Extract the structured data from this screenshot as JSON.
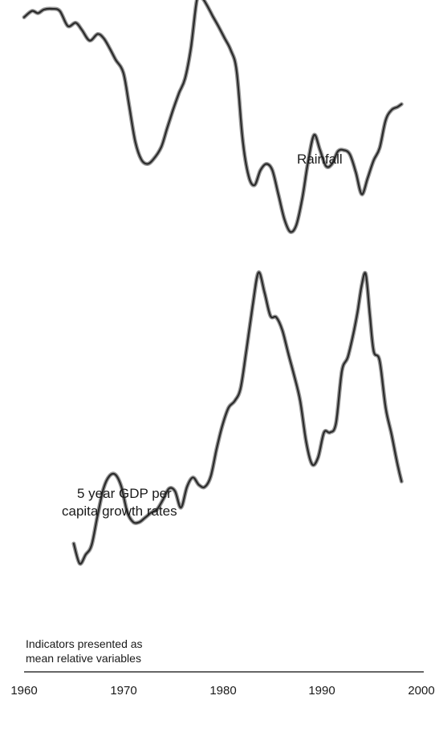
{
  "chart_data": {
    "type": "line",
    "title": "",
    "xlabel": "",
    "ylabel": "",
    "xlim": [
      1960,
      2000
    ],
    "x_ticks": [
      "1960",
      "1970",
      "1980",
      "1990",
      "2000"
    ],
    "grid": false,
    "legend": "none",
    "note_lines": [
      "Indicators presented as",
      "mean relative variables"
    ],
    "series": [
      {
        "name": "Rainfall",
        "label_lines": [
          "Rainfall"
        ],
        "x": [
          1960,
          1960.8,
          1961.4,
          1962,
          1962.8,
          1963.6,
          1964.4,
          1965.2,
          1965.8,
          1966.6,
          1967.4,
          1968,
          1968.6,
          1969.2,
          1970,
          1970.6,
          1971.2,
          1971.8,
          1972.4,
          1973,
          1973.8,
          1974.4,
          1975,
          1975.6,
          1976.2,
          1976.8,
          1977.4,
          1977.9,
          1978.4,
          1979,
          1979.6,
          1980.2,
          1980.8,
          1981.4,
          1982,
          1982.6,
          1983.2,
          1983.8,
          1984.4,
          1985,
          1985.6,
          1986.2,
          1986.8,
          1987.4,
          1988,
          1988.6,
          1989.2,
          1989.8,
          1990.4,
          1991,
          1991.6,
          1992.2,
          1992.8,
          1993.4,
          1994,
          1994.6,
          1995.2,
          1995.8,
          1996.4,
          1997,
          1997.6,
          1998
        ],
        "y": [
          0.3,
          0.82,
          0.64,
          0.94,
          1.0,
          0.82,
          -0.43,
          -0.16,
          -0.73,
          -1.64,
          -1.1,
          -1.43,
          -2.25,
          -3.21,
          -4.34,
          -7.16,
          -10.06,
          -11.53,
          -11.9,
          -11.53,
          -10.51,
          -8.94,
          -7.4,
          -6.01,
          -4.81,
          -2.25,
          1.73,
          1.91,
          1.31,
          0.38,
          -0.5,
          -1.46,
          -2.42,
          -4.16,
          -9.84,
          -12.88,
          -13.66,
          -12.43,
          -11.9,
          -12.43,
          -14.42,
          -16.46,
          -17.54,
          -17.0,
          -14.82,
          -11.71,
          -9.49,
          -10.75,
          -12.08,
          -11.9,
          -10.85,
          -10.75,
          -11.1,
          -12.58,
          -14.42,
          -13.06,
          -11.6,
          -10.58,
          -8.28,
          -7.41,
          -7.16,
          -6.93
        ]
      },
      {
        "name": "5 year GDP per capita growth rates",
        "label_lines": [
          "5 year GDP per",
          "capita growth rates"
        ],
        "x": [
          1965,
          1965.6,
          1966.2,
          1966.8,
          1967.4,
          1968,
          1968.6,
          1969.2,
          1969.8,
          1970.4,
          1971,
          1971.6,
          1972.2,
          1972.8,
          1973.4,
          1974,
          1974.6,
          1975.2,
          1975.8,
          1976.4,
          1977,
          1977.6,
          1978.2,
          1978.8,
          1979.4,
          1980,
          1980.6,
          1981.2,
          1981.8,
          1982.4,
          1983,
          1983.6,
          1984.2,
          1984.8,
          1985.4,
          1986,
          1986.6,
          1987.2,
          1987.8,
          1988.4,
          1989,
          1989.6,
          1990.2,
          1990.8,
          1991.4,
          1992,
          1992.6,
          1993.2,
          1993.6,
          1994,
          1994.4,
          1994.8,
          1995.2,
          1995.8,
          1996.4,
          1997,
          1997.6,
          1998
        ],
        "y": [
          9.87,
          8.21,
          8.95,
          9.73,
          12.21,
          14.45,
          15.49,
          15.59,
          14.58,
          12.46,
          11.65,
          11.65,
          12.03,
          12.44,
          12.72,
          13.55,
          14.45,
          14.22,
          12.86,
          14.58,
          15.36,
          14.75,
          14.58,
          15.46,
          17.81,
          19.78,
          21.18,
          21.72,
          22.79,
          26.03,
          29.55,
          32.41,
          30.77,
          28.81,
          28.68,
          27.61,
          25.68,
          23.82,
          21.74,
          18.33,
          16.46,
          17.02,
          19.11,
          19.11,
          19.86,
          24.21,
          25.37,
          27.5,
          29.24,
          31.37,
          32.28,
          29.04,
          25.88,
          25.08,
          21.18,
          18.94,
          16.45,
          15.03
        ]
      }
    ]
  }
}
